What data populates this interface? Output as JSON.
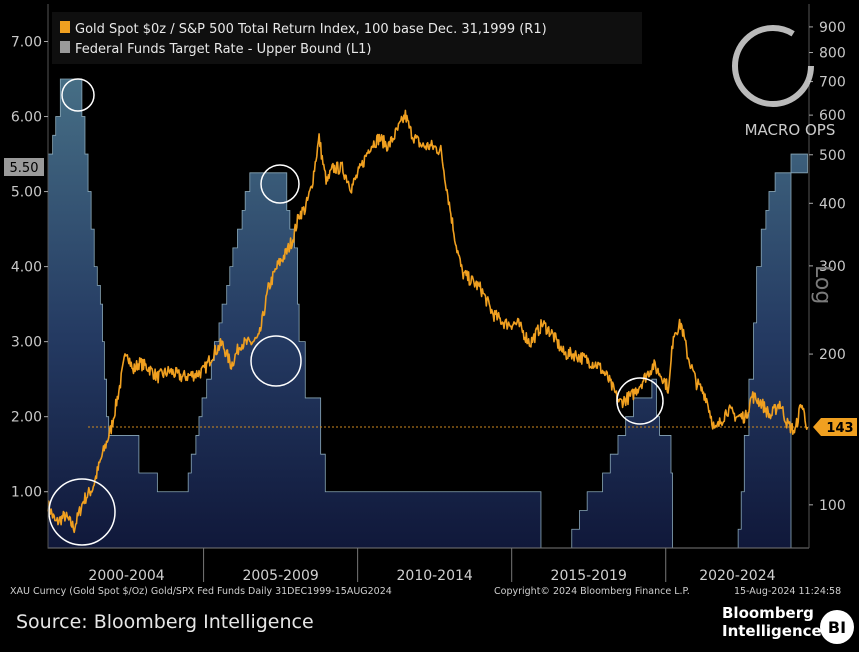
{
  "chart_data": {
    "type": "area+line",
    "legend": [
      {
        "label": "Gold Spot $0z / S&P 500 Total Return Index, 100 base Dec. 31,1999 (R1)",
        "color": "#f0a020"
      },
      {
        "label": "Federal Funds Target Rate - Upper Bound (L1)",
        "color": "#9a9a9a"
      }
    ],
    "left_axis": {
      "ticks": [
        "1.00",
        "2.00",
        "3.00",
        "4.00",
        "5.00",
        "6.00",
        "7.00"
      ],
      "range": [
        0.25,
        7.5
      ],
      "current_label": "5.50"
    },
    "right_axis": {
      "ticks": [
        "100",
        "200",
        "300",
        "400",
        "500",
        "600",
        "700",
        "800",
        "900"
      ],
      "scale": "log",
      "range": [
        82,
        1000
      ],
      "current_label": "143",
      "log_label": "Log"
    },
    "x_axis": {
      "labels": [
        "2000-2004",
        "2005-2009",
        "2010-2014",
        "2015-2019",
        "2020-2024"
      ],
      "range": [
        1999.95,
        2024.65
      ]
    },
    "fed_funds": {
      "t": [
        1999.95,
        2000.1,
        2000.2,
        2000.35,
        2000.45,
        2000.95,
        2001.05,
        2001.15,
        2001.25,
        2001.35,
        2001.45,
        2001.55,
        2001.65,
        2001.72,
        2001.78,
        2001.85,
        2001.92,
        2002.9,
        2003.5,
        2004.5,
        2004.6,
        2004.75,
        2004.85,
        2004.95,
        2005.1,
        2005.25,
        2005.35,
        2005.5,
        2005.6,
        2005.75,
        2005.85,
        2005.95,
        2006.1,
        2006.25,
        2006.35,
        2006.5,
        2007.7,
        2007.8,
        2007.95,
        2008.05,
        2008.1,
        2008.3,
        2008.8,
        2008.95,
        2015.95,
        2016.95,
        2017.2,
        2017.45,
        2017.95,
        2018.2,
        2018.45,
        2018.7,
        2018.95,
        2019.55,
        2019.7,
        2019.8,
        2020.17,
        2020.22,
        2022.2,
        2022.35,
        2022.45,
        2022.55,
        2022.7,
        2022.85,
        2022.95,
        2023.1,
        2023.25,
        2023.35,
        2023.55,
        2024.6
      ],
      "v": [
        5.5,
        5.75,
        6.0,
        6.5,
        6.5,
        6.5,
        6.0,
        5.5,
        5.0,
        4.5,
        4.0,
        3.75,
        3.5,
        3.0,
        2.5,
        2.0,
        1.75,
        1.25,
        1.0,
        1.25,
        1.5,
        1.75,
        2.0,
        2.25,
        2.5,
        2.75,
        3.0,
        3.25,
        3.5,
        3.75,
        4.0,
        4.25,
        4.5,
        4.75,
        5.0,
        5.25,
        4.75,
        4.5,
        4.25,
        3.5,
        3.0,
        2.25,
        1.5,
        1.0,
        0.25,
        0.5,
        0.75,
        1.0,
        1.25,
        1.5,
        1.75,
        2.0,
        2.25,
        2.5,
        2.0,
        1.75,
        1.25,
        0.25,
        0.25,
        0.5,
        1.0,
        1.75,
        2.5,
        3.25,
        4.0,
        4.5,
        4.75,
        5.0,
        5.25,
        5.5
      ]
    },
    "gold_spx": {
      "t": [
        1999.95,
        2000.2,
        2000.5,
        2000.8,
        2001.1,
        2001.4,
        2001.7,
        2002.0,
        2002.3,
        2002.5,
        2002.7,
        2002.9,
        2003.2,
        2003.5,
        2003.9,
        2004.3,
        2004.7,
        2005.0,
        2005.3,
        2005.6,
        2005.9,
        2006.2,
        2006.5,
        2006.8,
        2007.1,
        2007.4,
        2007.7,
        2007.9,
        2008.1,
        2008.3,
        2008.5,
        2008.75,
        2008.9,
        2009.0,
        2009.2,
        2009.5,
        2009.8,
        2010.1,
        2010.4,
        2010.7,
        2011.0,
        2011.3,
        2011.55,
        2011.7,
        2011.85,
        2012.1,
        2012.4,
        2012.7,
        2013.0,
        2013.2,
        2013.4,
        2013.7,
        2014.0,
        2014.4,
        2014.8,
        2015.2,
        2015.6,
        2016.0,
        2016.3,
        2016.7,
        2017.0,
        2017.4,
        2017.8,
        2018.1,
        2018.5,
        2018.9,
        2019.2,
        2019.6,
        2019.9,
        2020.1,
        2020.25,
        2020.5,
        2020.7,
        2021.0,
        2021.3,
        2021.6,
        2022.0,
        2022.3,
        2022.6,
        2022.8,
        2023.1,
        2023.4,
        2023.7,
        2023.95,
        2024.2,
        2024.4,
        2024.6
      ],
      "v": [
        100,
        92,
        95,
        90,
        102,
        108,
        125,
        142,
        175,
        205,
        185,
        192,
        188,
        180,
        185,
        180,
        182,
        185,
        200,
        210,
        190,
        210,
        210,
        215,
        270,
        300,
        320,
        340,
        380,
        390,
        430,
        540,
        470,
        440,
        470,
        470,
        430,
        470,
        520,
        540,
        520,
        560,
        600,
        560,
        540,
        520,
        520,
        510,
        390,
        330,
        290,
        280,
        270,
        240,
        230,
        230,
        210,
        230,
        220,
        200,
        200,
        195,
        190,
        180,
        160,
        165,
        175,
        190,
        180,
        170,
        220,
        230,
        200,
        175,
        165,
        140,
        155,
        150,
        150,
        165,
        160,
        150,
        160,
        145,
        140,
        160,
        143
      ]
    },
    "reference_line": 143
  },
  "footer": {
    "left": "XAU Curncy (Gold Spot  $/Oz) Gold/SPX Fed Funds  Daily 31DEC1999-15AUG2024",
    "mid": "Copyright© 2024 Bloomberg Finance L.P.",
    "right": "15-Aug-2024 11:24:58",
    "source": "Source: Bloomberg Intelligence"
  },
  "brand": {
    "line1": "Bloomberg",
    "line2": "Intelligence",
    "badge": "BI"
  },
  "watermark": {
    "text": "MACRO OPS"
  },
  "colors": {
    "gold": "#f0a020",
    "area_top": "#466e85",
    "area_bottom": "#10183a",
    "background": "#000000"
  }
}
